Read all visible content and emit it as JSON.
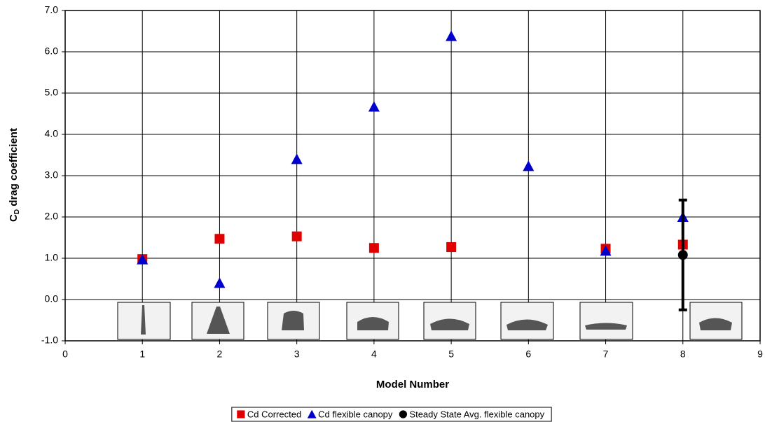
{
  "chart_data": {
    "type": "scatter",
    "xlabel": "Model Number",
    "ylabel": [
      "C",
      "D",
      " drag coefficient"
    ],
    "xlim": [
      0,
      9
    ],
    "xticks": [
      0,
      1,
      2,
      3,
      4,
      5,
      6,
      7,
      8,
      9
    ],
    "ylim": [
      -1,
      7
    ],
    "yticks": [
      {
        "value": -1,
        "label": "-1.0"
      },
      {
        "value": 0,
        "label": "0.0"
      },
      {
        "value": 1,
        "label": "1.0"
      },
      {
        "value": 2,
        "label": "2.0"
      },
      {
        "value": 3,
        "label": "3.0"
      },
      {
        "value": 4,
        "label": "4.0"
      },
      {
        "value": 5,
        "label": "5.0"
      },
      {
        "value": 6,
        "label": "6.0"
      },
      {
        "value": 7,
        "label": "7.0"
      }
    ],
    "grid": true,
    "legend": "bottom",
    "series": [
      {
        "name": "Cd Corrected",
        "color": "#e00000",
        "marker": "square",
        "x": [
          1,
          2,
          3,
          4,
          5,
          7,
          8
        ],
        "values": [
          0.98,
          1.47,
          1.53,
          1.25,
          1.27,
          1.23,
          1.33
        ]
      },
      {
        "name": "Cd flexible canopy",
        "color": "#0000cc",
        "marker": "triangle",
        "x": [
          1,
          2,
          3,
          4,
          5,
          6,
          7,
          8
        ],
        "values": [
          0.97,
          0.4,
          3.4,
          4.67,
          6.38,
          3.23,
          1.18,
          2.0
        ]
      },
      {
        "name": "Steady State Avg. flexible canopy",
        "color": "#000000",
        "marker": "circle",
        "x": [
          8
        ],
        "values": [
          1.08
        ],
        "errors": [
          1.33
        ]
      }
    ]
  }
}
